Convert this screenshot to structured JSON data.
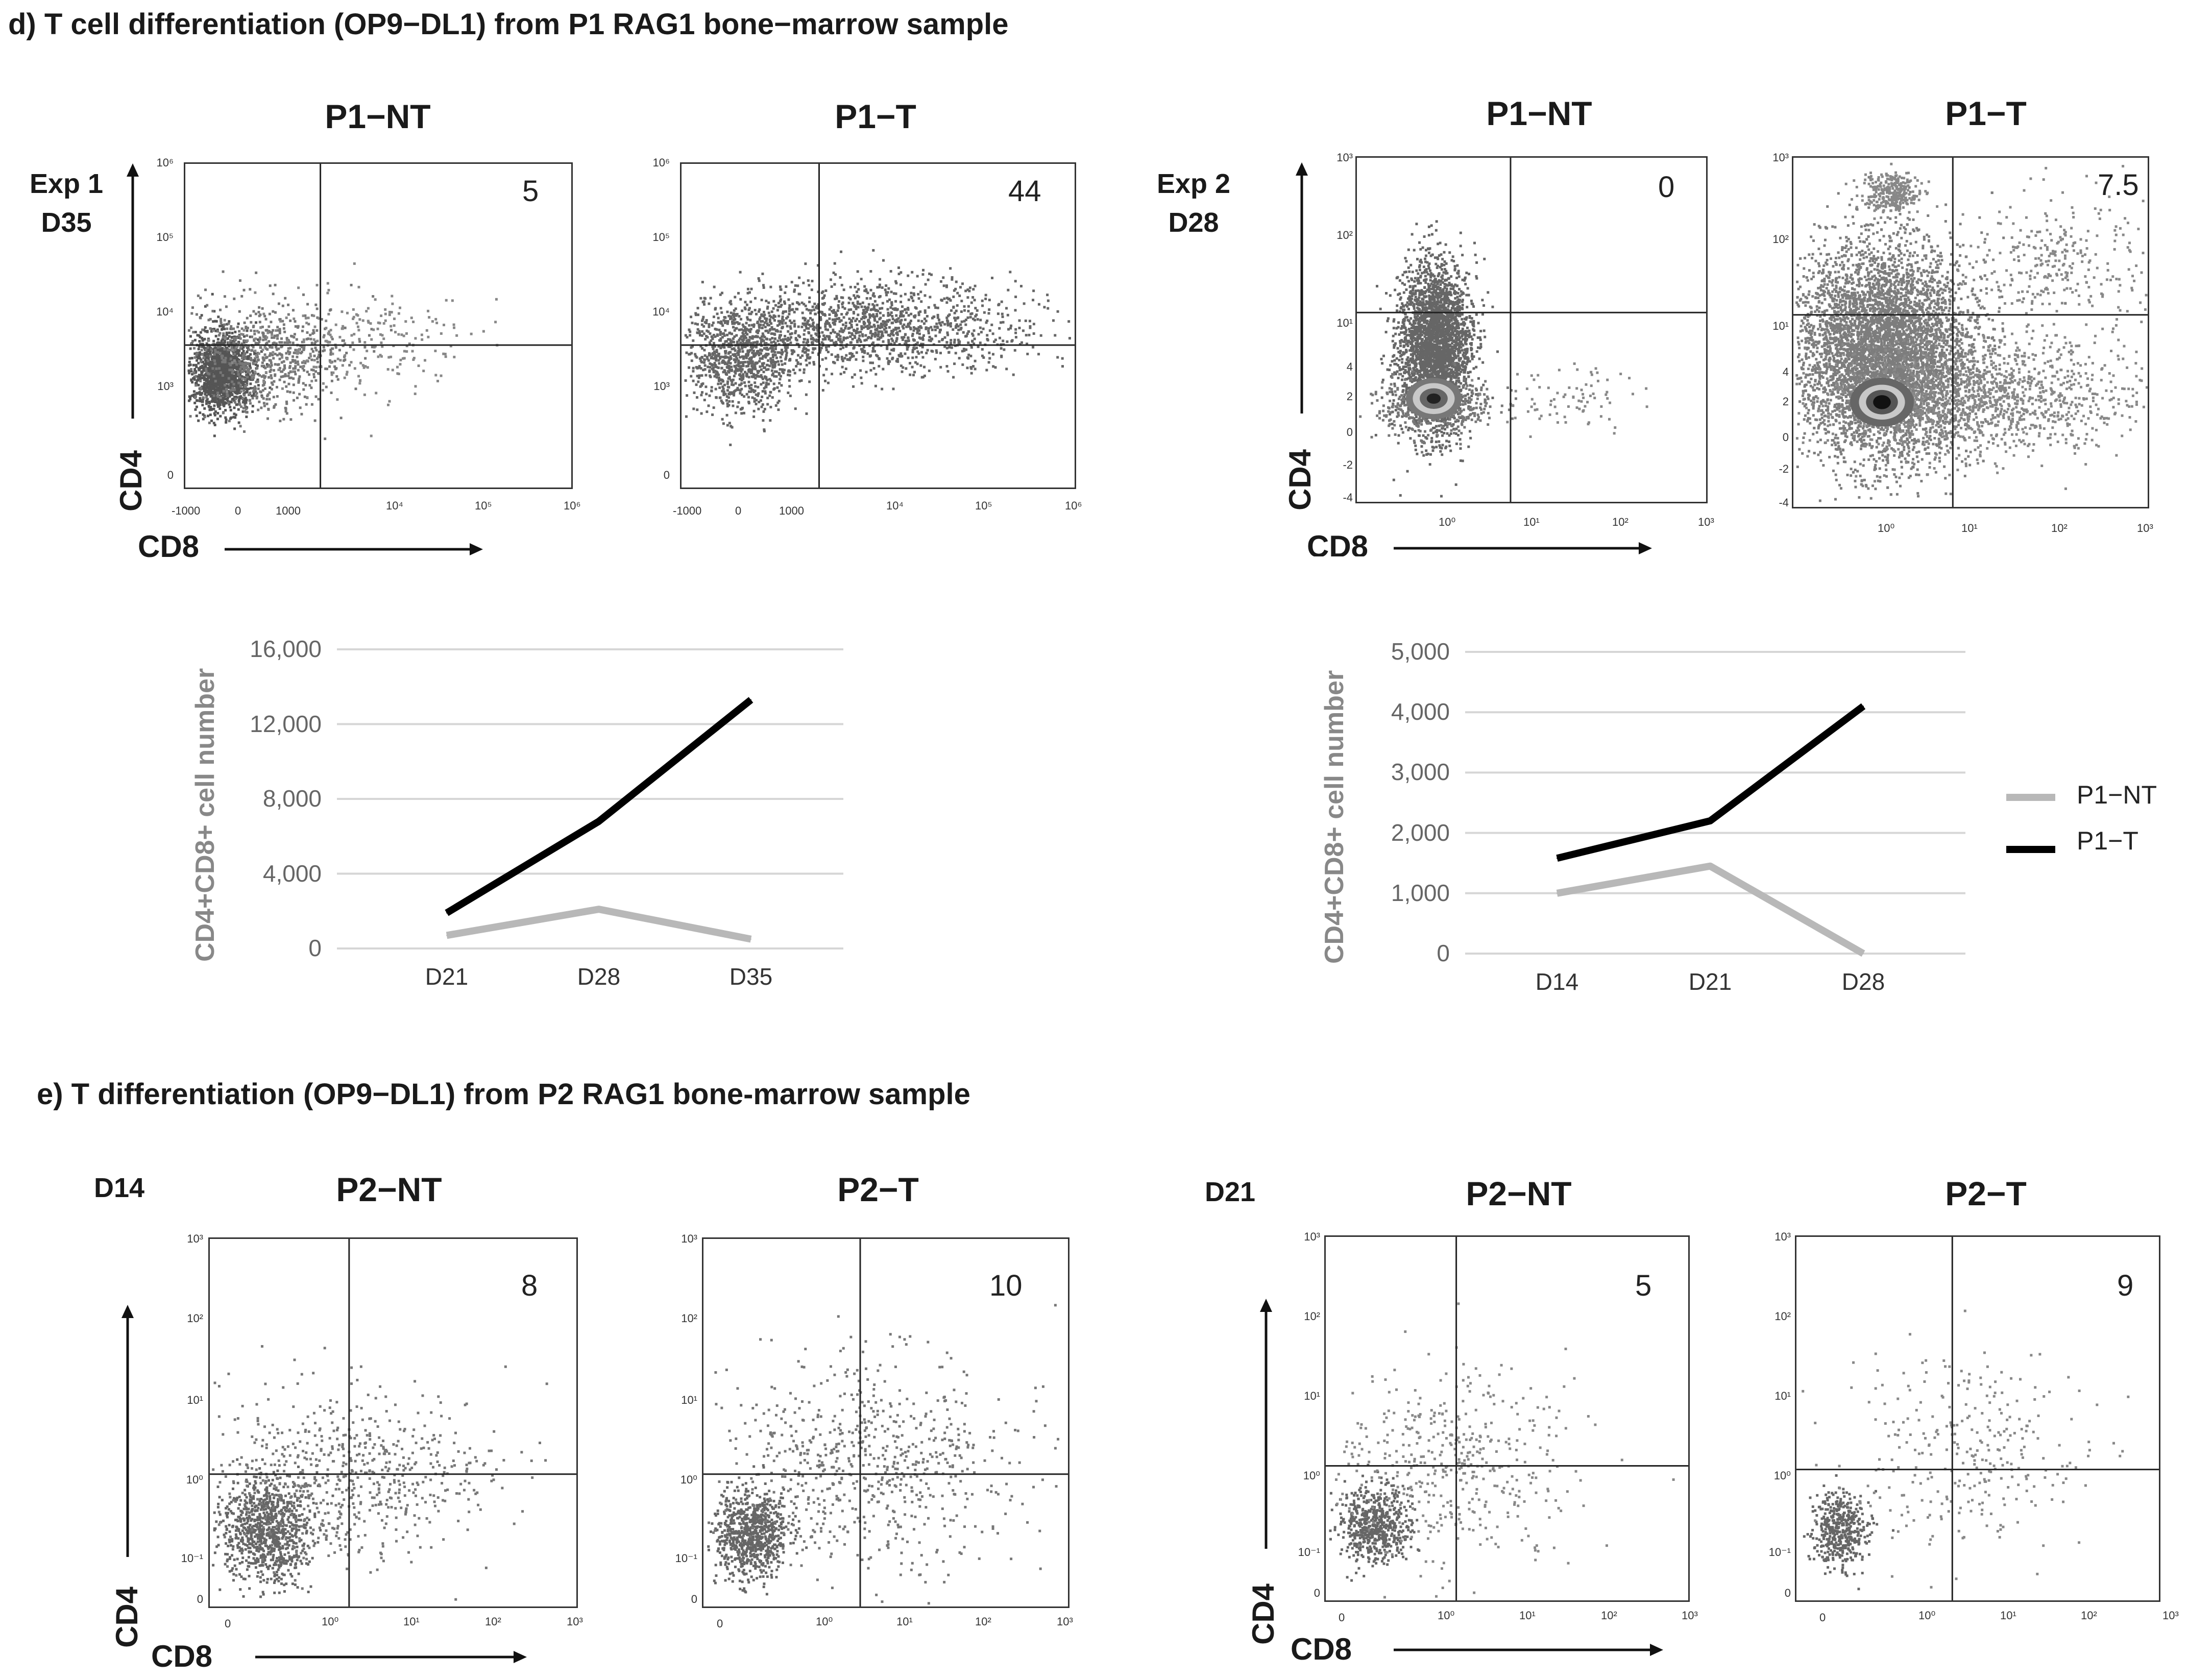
{
  "sections": {
    "d_title": "d) T cell differentiation (OP9−DL1) from P1 RAG1 bone−marrow sample",
    "e_title": "e) T differentiation (OP9−DL1) from P2 RAG1 bone-marrow sample"
  },
  "labels": {
    "exp1_line1": "Exp 1",
    "exp1_line2": "D35",
    "exp2_line1": "Exp 2",
    "exp2_line2": "D28",
    "d14": "D14",
    "d21": "D21",
    "cd4": "CD4",
    "cd8": "CD8",
    "cd8_partial": "CD8"
  },
  "facs_plots": [
    {
      "title": "P1−NT",
      "quadrant_value": "5"
    },
    {
      "title": "P1−T",
      "quadrant_value": "44"
    },
    {
      "title": "P1−NT",
      "quadrant_value": "0"
    },
    {
      "title": "P1−T",
      "quadrant_value": "7.5"
    },
    {
      "title": "P2−NT",
      "quadrant_value": "8"
    },
    {
      "title": "P2−T",
      "quadrant_value": "10"
    },
    {
      "title": "P2−NT",
      "quadrant_value": "5"
    },
    {
      "title": "P2−T",
      "quadrant_value": "9"
    }
  ],
  "axis_ticks": {
    "exp1_x": [
      "-1000",
      "0",
      "1000",
      "10⁴",
      "10⁵",
      "10⁶"
    ],
    "exp1_y": [
      "10⁶",
      "10⁵",
      "10⁴",
      "10³",
      "0"
    ],
    "exp2_x": [
      "10⁰",
      "10¹",
      "10²",
      "10³"
    ],
    "exp2_y": [
      "10³",
      "10²",
      "10¹",
      "4",
      "2",
      "0",
      "-2",
      "-4"
    ],
    "e_x": [
      "0",
      "10⁰",
      "10¹",
      "10²",
      "10³"
    ],
    "e_y": [
      "10³",
      "10²",
      "10¹",
      "10⁰",
      "10⁻¹",
      "0"
    ]
  },
  "chart_data": [
    {
      "type": "line",
      "categories": [
        "D21",
        "D28",
        "D35"
      ],
      "series": [
        {
          "name": "P1−NT",
          "values": [
            700,
            2100,
            500
          ],
          "color": "#b8b8b8"
        },
        {
          "name": "P1−T",
          "values": [
            1900,
            6800,
            13300
          ],
          "color": "#000000"
        }
      ],
      "ylabel": "CD4+CD8+ cell number",
      "ylim": [
        0,
        16000
      ],
      "yticks": [
        "16,000",
        "12,000",
        "8,000",
        "4,000",
        "0"
      ],
      "grid": true
    },
    {
      "type": "line",
      "categories": [
        "D14",
        "D21",
        "D28"
      ],
      "series": [
        {
          "name": "P1−NT",
          "values": [
            1000,
            1450,
            0
          ],
          "color": "#b8b8b8"
        },
        {
          "name": "P1−T",
          "values": [
            1580,
            2200,
            4100
          ],
          "color": "#000000"
        }
      ],
      "ylabel": "CD4+CD8+ cell number",
      "ylim": [
        0,
        5000
      ],
      "yticks": [
        "5,000",
        "4,000",
        "3,000",
        "2,000",
        "1,000",
        "0"
      ],
      "grid": true,
      "legend": [
        "P1−NT",
        "P1−T"
      ]
    }
  ]
}
